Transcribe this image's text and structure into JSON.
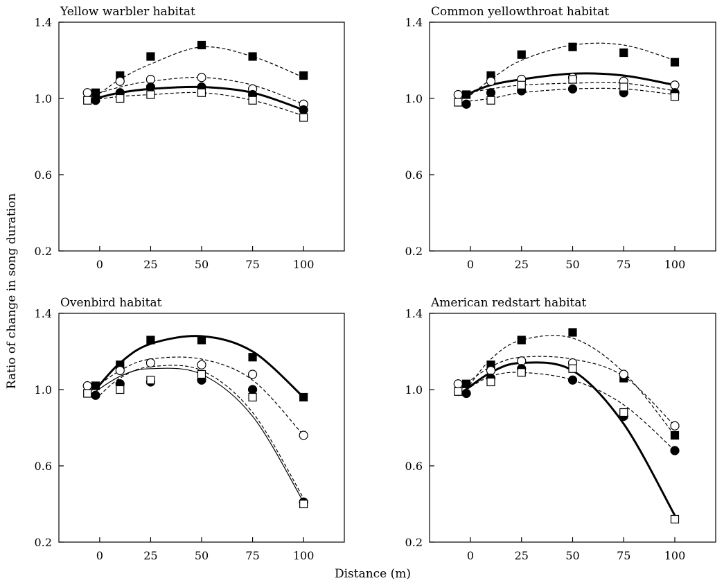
{
  "figure": {
    "ylabel": "Ratio of change in song duration",
    "xlabel": "Distance (m)"
  },
  "chart_data": [
    {
      "type": "scatter",
      "title": "Yellow warbler habitat",
      "xlim": [
        -20,
        120
      ],
      "ylim": [
        0.2,
        1.4
      ],
      "xticks": [
        "0",
        "25",
        "50",
        "75",
        "100"
      ],
      "yticks": [
        "0.2",
        "0.6",
        "1.0",
        "1.4"
      ],
      "grid": false,
      "series": [
        {
          "marker": "filled-square",
          "line": "dashed",
          "x": [
            -2,
            10,
            25,
            50,
            75,
            100
          ],
          "y": [
            1.03,
            1.12,
            1.22,
            1.28,
            1.22,
            1.12
          ],
          "fit": [
            1.01,
            1.1,
            1.18,
            1.27,
            1.22,
            1.11
          ]
        },
        {
          "marker": "open-circle",
          "line": "dashed",
          "x": [
            -6,
            10,
            25,
            50,
            75,
            100
          ],
          "y": [
            1.03,
            1.09,
            1.1,
            1.11,
            1.05,
            0.97
          ],
          "fit": [
            1.01,
            1.06,
            1.09,
            1.11,
            1.07,
            0.97
          ]
        },
        {
          "marker": "filled-circle",
          "line": "bold",
          "x": [
            -2,
            10,
            25,
            50,
            75,
            100
          ],
          "y": [
            0.99,
            1.03,
            1.06,
            1.06,
            1.02,
            0.94
          ],
          "fit": [
            1.0,
            1.03,
            1.05,
            1.06,
            1.03,
            0.94
          ]
        },
        {
          "marker": "open-square",
          "line": "dashed",
          "x": [
            -6,
            10,
            25,
            50,
            75,
            100
          ],
          "y": [
            0.99,
            1.0,
            1.02,
            1.03,
            0.99,
            0.9
          ],
          "fit": [
            0.99,
            1.01,
            1.02,
            1.03,
            0.99,
            0.91
          ]
        }
      ]
    },
    {
      "type": "scatter",
      "title": "Common yellowthroat habitat",
      "xlim": [
        -20,
        120
      ],
      "ylim": [
        0.2,
        1.4
      ],
      "xticks": [
        "0",
        "25",
        "50",
        "75",
        "100"
      ],
      "yticks": [
        "0.2",
        "0.6",
        "1.0",
        "1.4"
      ],
      "grid": false,
      "series": [
        {
          "marker": "filled-square",
          "line": "dashed",
          "x": [
            -2,
            10,
            25,
            50,
            75,
            100
          ],
          "y": [
            1.02,
            1.12,
            1.23,
            1.27,
            1.24,
            1.19
          ],
          "fit": [
            1.0,
            1.1,
            1.2,
            1.28,
            1.28,
            1.2
          ]
        },
        {
          "marker": "open-circle",
          "line": "dashed",
          "x": [
            -6,
            10,
            25,
            50,
            75,
            100
          ],
          "y": [
            1.02,
            1.09,
            1.1,
            1.11,
            1.09,
            1.07
          ],
          "fit": [
            1.02,
            1.05,
            1.07,
            1.08,
            1.08,
            1.04
          ]
        },
        {
          "marker": "filled-circle",
          "line": "bold",
          "x": [
            -2,
            10,
            25,
            50,
            75,
            100
          ],
          "y": [
            0.97,
            1.03,
            1.04,
            1.05,
            1.03,
            1.03
          ],
          "fit": [
            1.02,
            1.07,
            1.1,
            1.13,
            1.12,
            1.07
          ]
        },
        {
          "marker": "open-square",
          "line": "dashed",
          "x": [
            -6,
            10,
            25,
            50,
            75,
            100
          ],
          "y": [
            0.98,
            0.99,
            1.07,
            1.1,
            1.06,
            1.01
          ],
          "fit": [
            0.98,
            1.0,
            1.03,
            1.05,
            1.05,
            1.02
          ]
        }
      ]
    },
    {
      "type": "scatter",
      "title": "Ovenbird habitat",
      "xlim": [
        -20,
        120
      ],
      "ylim": [
        0.2,
        1.4
      ],
      "xticks": [
        "0",
        "25",
        "50",
        "75",
        "100"
      ],
      "yticks": [
        "0.2",
        "0.6",
        "1.0",
        "1.4"
      ],
      "grid": false,
      "series": [
        {
          "marker": "filled-square",
          "line": "bold",
          "x": [
            -2,
            10,
            25,
            50,
            75,
            100
          ],
          "y": [
            1.02,
            1.13,
            1.26,
            1.26,
            1.17,
            0.96
          ],
          "fit": [
            1.0,
            1.14,
            1.24,
            1.28,
            1.2,
            0.96
          ]
        },
        {
          "marker": "open-circle",
          "line": "dashed",
          "x": [
            -6,
            10,
            25,
            50,
            75,
            100
          ],
          "y": [
            1.02,
            1.1,
            1.14,
            1.13,
            1.08,
            0.76
          ],
          "fit": [
            0.98,
            1.1,
            1.16,
            1.16,
            1.05,
            0.76
          ]
        },
        {
          "marker": "filled-circle",
          "line": "dashed",
          "x": [
            -2,
            10,
            25,
            50,
            75,
            100
          ],
          "y": [
            0.97,
            1.03,
            1.04,
            1.05,
            1.0,
            0.41
          ],
          "fit": [
            0.95,
            1.06,
            1.12,
            1.1,
            0.88,
            0.43
          ]
        },
        {
          "marker": "open-square",
          "line": "thin",
          "x": [
            -6,
            10,
            25,
            50,
            75,
            100
          ],
          "y": [
            0.98,
            1.0,
            1.05,
            1.08,
            0.96,
            0.4
          ],
          "fit": [
            0.96,
            1.07,
            1.11,
            1.08,
            0.86,
            0.41
          ]
        }
      ]
    },
    {
      "type": "scatter",
      "title": "American redstart habitat",
      "xlim": [
        -20,
        120
      ],
      "ylim": [
        0.2,
        1.4
      ],
      "xticks": [
        "0",
        "25",
        "50",
        "75",
        "100"
      ],
      "yticks": [
        "0.2",
        "0.6",
        "1.0",
        "1.4"
      ],
      "grid": false,
      "series": [
        {
          "marker": "filled-square",
          "line": "dashed",
          "x": [
            -2,
            10,
            25,
            50,
            75,
            100
          ],
          "y": [
            1.03,
            1.13,
            1.26,
            1.3,
            1.06,
            0.76
          ],
          "fit": [
            1.0,
            1.16,
            1.26,
            1.27,
            1.09,
            0.76
          ]
        },
        {
          "marker": "open-circle",
          "line": "dashed",
          "x": [
            -6,
            10,
            25,
            50,
            75,
            100
          ],
          "y": [
            1.03,
            1.1,
            1.15,
            1.14,
            1.08,
            0.81
          ],
          "fit": [
            1.0,
            1.12,
            1.17,
            1.16,
            1.07,
            0.81
          ]
        },
        {
          "marker": "filled-circle",
          "line": "dashed",
          "x": [
            -2,
            10,
            25,
            50,
            75,
            100
          ],
          "y": [
            0.98,
            1.06,
            1.11,
            1.05,
            0.86,
            0.68
          ],
          "fit": [
            1.0,
            1.07,
            1.09,
            1.05,
            0.92,
            0.68
          ]
        },
        {
          "marker": "open-square",
          "line": "bold",
          "x": [
            -6,
            10,
            25,
            50,
            75,
            100
          ],
          "y": [
            0.99,
            1.04,
            1.09,
            1.11,
            0.88,
            0.32
          ],
          "fit": [
            0.97,
            1.09,
            1.14,
            1.1,
            0.82,
            0.34
          ]
        }
      ]
    }
  ]
}
